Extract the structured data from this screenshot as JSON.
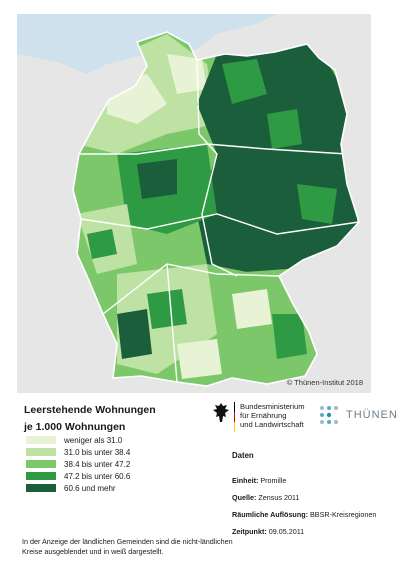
{
  "title_line1": "Leerstehende Wohnungen",
  "title_line2": "je 1.000 Wohnungen",
  "copyright": "© Thünen-Institut 2018",
  "legend": [
    {
      "label": "weniger als 31.0",
      "color": "#e8f3d6"
    },
    {
      "label": "31.0 bis unter 38.4",
      "color": "#bde2a4"
    },
    {
      "label": "38.4 bis unter 47.2",
      "color": "#7cc76a"
    },
    {
      "label": "47.2 bis unter 60.6",
      "color": "#2f9a44"
    },
    {
      "label": "60.6 und mehr",
      "color": "#1b5e3b"
    }
  ],
  "ministry": {
    "line1": "Bundesministerium",
    "line2": "für Ernährung",
    "line3": "und Landwirtschaft"
  },
  "thunen_logo": "THÜNEN",
  "daten": {
    "heading": "Daten",
    "rows": [
      {
        "key": "Einheit:",
        "value": "Promille"
      },
      {
        "key": "Quelle:",
        "value": "Zensus 2011"
      },
      {
        "key": "Räumliche Auflösung:",
        "value": "BBSR-Kreisregionen"
      },
      {
        "key": "Zeitpunkt:",
        "value": "09.05.2011"
      }
    ]
  },
  "footnote_line1": "In der Anzeige der ländlichen Gemeinden sind die nicht-ländlichen",
  "footnote_line2": "Kreise ausgeblendet und in weiß dargestellt.",
  "map_colors": {
    "water": "#cfe1ec",
    "neighbor": "#e6e6e6",
    "class1": "#e8f3d6",
    "class2": "#bde2a4",
    "class3": "#7cc76a",
    "class4": "#2f9a44",
    "class5": "#1b5e3b",
    "border": "#ffffff"
  }
}
